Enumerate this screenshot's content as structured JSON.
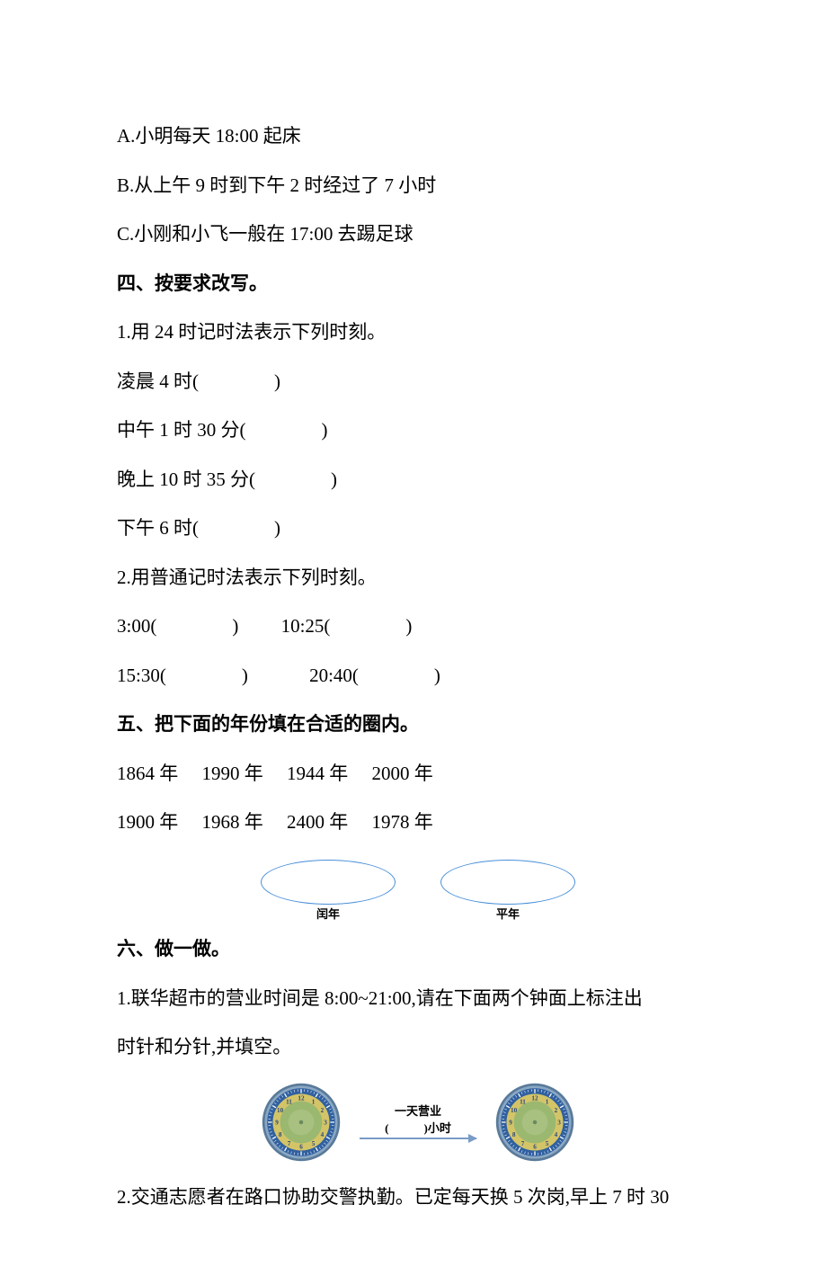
{
  "optionA": "A.小明每天 18:00 起床",
  "optionB": "B.从上午 9 时到下午 2 时经过了 7 小时",
  "optionC": "C.小刚和小飞一般在 17:00 去踢足球",
  "section4": {
    "title": "四、按要求改写。",
    "q1": {
      "prompt": "1.用 24 时记时法表示下列时刻。",
      "items": [
        "凌晨 4 时(　　　　)",
        "中午 1 时 30 分(　　　　)",
        "晚上 10 时 35 分(　　　　)",
        "下午 6 时(　　　　)"
      ]
    },
    "q2": {
      "prompt": "2.用普通记时法表示下列时刻。",
      "row1": "3:00(　　　　)　　 10:25(　　　　)",
      "row2": "15:30(　　　　)　　　 20:40(　　　　)"
    }
  },
  "section5": {
    "title": "五、把下面的年份填在合适的圈内。",
    "row1": "1864 年　 1990 年　 1944 年　 2000 年",
    "row2": "1900 年　 1968 年　 2400 年　 1978 年",
    "label_leap": "闰年",
    "label_common": "平年",
    "ellipse_border": "#4a90d9"
  },
  "section6": {
    "title": "六、做一做。",
    "q1": {
      "line1": "1.联华超市的营业时间是 8:00~21:00,请在下面两个钟面上标注出",
      "line2": "时针和分针,并填空。",
      "arrow_top": "一天营业",
      "arrow_bottom": "(　　　)小时"
    },
    "q2": {
      "line1": "2.交通志愿者在路口协助交警执勤。已定每天换 5 次岗,早上 7 时 30"
    }
  },
  "clock": {
    "rim_outer": "#5a7a9a",
    "rim_inner": "#8aa8c4",
    "tick_band": "#3060a0",
    "face_outer": "#d4c468",
    "face_inner": "#9ab870",
    "face_center": "#a8c080",
    "tick_color": "#ffffff",
    "num_color": "#2a4a7a",
    "hub_color": "#6a8a60",
    "numbers": [
      "12",
      "1",
      "2",
      "3",
      "4",
      "5",
      "6",
      "7",
      "8",
      "9",
      "10",
      "11"
    ]
  }
}
